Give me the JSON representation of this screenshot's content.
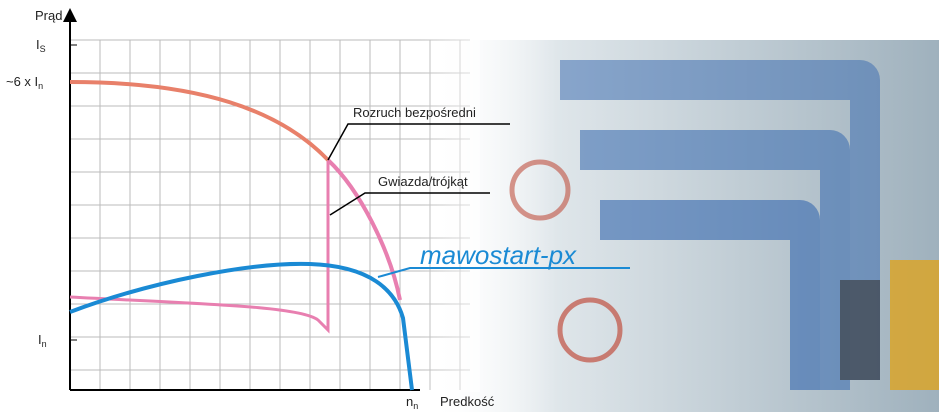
{
  "axes": {
    "y_title": "Prąd",
    "x_title": "Predkość"
  },
  "y_labels": [
    {
      "main": "I",
      "sub": "S"
    },
    {
      "main": "~6 x I",
      "sub": "n"
    },
    {
      "main": "I",
      "sub": "n"
    }
  ],
  "x_labels": [
    {
      "main": "n",
      "sub": "n"
    }
  ],
  "annotations": [
    "Rozruch bezpośredni",
    "Gwiazda/trójkąt",
    "mawostart-px"
  ]
}
